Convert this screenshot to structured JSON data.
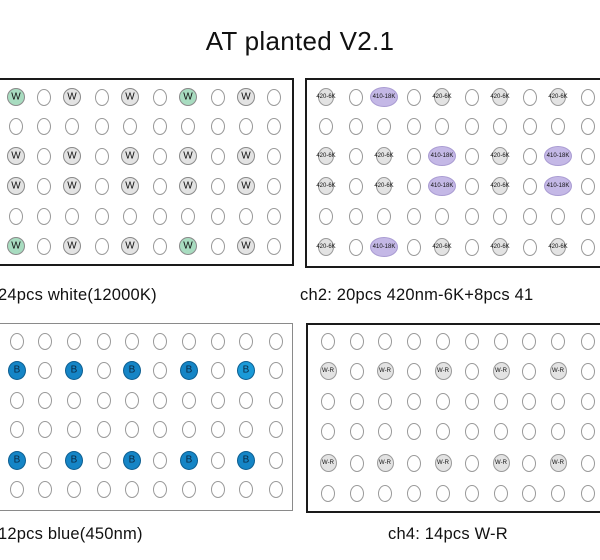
{
  "title": "AT planted V2.1",
  "colors": {
    "white_led": "#a8dcc0",
    "white_led_plain": "#e3e3e3",
    "violet_led": "#c4b8e6",
    "neutral_led": "#e3e3e3",
    "blue_led": "#1a9ad8",
    "blue_led_dark": "#1585c6"
  },
  "panels": [
    {
      "id": "ch1",
      "caption": "24pcs white(12000K)",
      "labels": {
        "0,0": "W",
        "0,2": "W",
        "0,4": "W",
        "0,6": "W",
        "0,8": "W",
        "2,0": "W",
        "2,2": "W",
        "2,4": "W",
        "2,6": "W",
        "2,8": "W",
        "3,0": "W",
        "3,2": "W",
        "3,4": "W",
        "3,6": "W",
        "3,8": "W",
        "5,0": "W",
        "5,2": "W",
        "5,4": "W",
        "5,6": "W",
        "5,8": "W"
      },
      "highlight": [
        "0,0",
        "0,6",
        "5,0",
        "5,6"
      ]
    },
    {
      "id": "ch2",
      "caption": "ch2: 20pcs 420nm-6K+8pcs 41",
      "labels": {
        "0,0": "420-6K",
        "0,2": "410-18K",
        "0,4": "420-6K",
        "0,6": "420-6K",
        "0,8": "420-6K",
        "2,0": "420-6K",
        "2,2": "420-6K",
        "2,4": "410-18K",
        "2,6": "420-6K",
        "2,8": "410-18K",
        "3,0": "420-6K",
        "3,2": "420-6K",
        "3,4": "410-18K",
        "3,6": "420-6K",
        "3,8": "410-18K",
        "5,0": "420-6K",
        "5,2": "410-18K",
        "5,4": "420-6K",
        "5,6": "420-6K",
        "5,8": "420-6K"
      },
      "violet": [
        "0,2",
        "2,4",
        "2,8",
        "3,4",
        "3,8",
        "5,2"
      ]
    },
    {
      "id": "ch3",
      "caption": "12pcs blue(450nm)",
      "labels": {
        "1,0": "B",
        "1,2": "B",
        "1,4": "B",
        "1,6": "B",
        "1,8": "B",
        "4,0": "B",
        "4,2": "B",
        "4,4": "B",
        "4,6": "B",
        "4,8": "B"
      }
    },
    {
      "id": "ch4",
      "caption": "ch4: 14pcs W-R",
      "labels": {
        "1,0": "W-R",
        "1,2": "W-R",
        "1,4": "W-R",
        "1,6": "W-R",
        "1,8": "W-R",
        "4,0": "W-R",
        "4,2": "W-R",
        "4,4": "W-R",
        "4,6": "W-R",
        "4,8": "W-R"
      }
    }
  ]
}
